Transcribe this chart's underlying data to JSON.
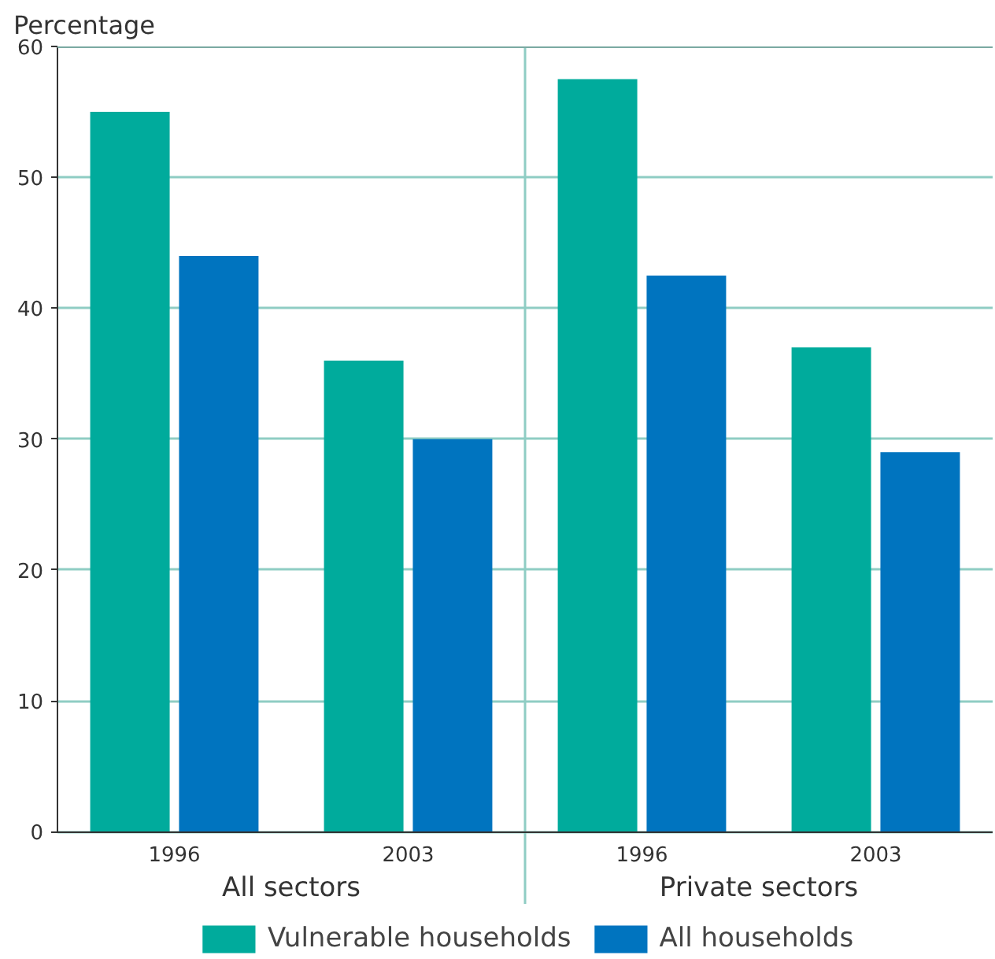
{
  "chart_data": {
    "type": "bar",
    "ylabel": "Percentage",
    "categories": [
      "1996",
      "2003",
      "1996",
      "2003"
    ],
    "series": [
      {
        "name": "Vulnerable households",
        "color": "#00ab9c",
        "values": [
          55,
          36,
          57.5,
          37
        ]
      },
      {
        "name": "All households",
        "color": "#0074bf",
        "values": [
          44,
          30,
          42.5,
          29
        ]
      }
    ],
    "annotations": [
      "All sectors",
      "Private sectors"
    ],
    "ylim": [
      0,
      60
    ],
    "yticks": [
      0,
      10,
      20,
      30,
      40,
      50,
      60
    ],
    "grid": "y",
    "legend": "bottom"
  }
}
